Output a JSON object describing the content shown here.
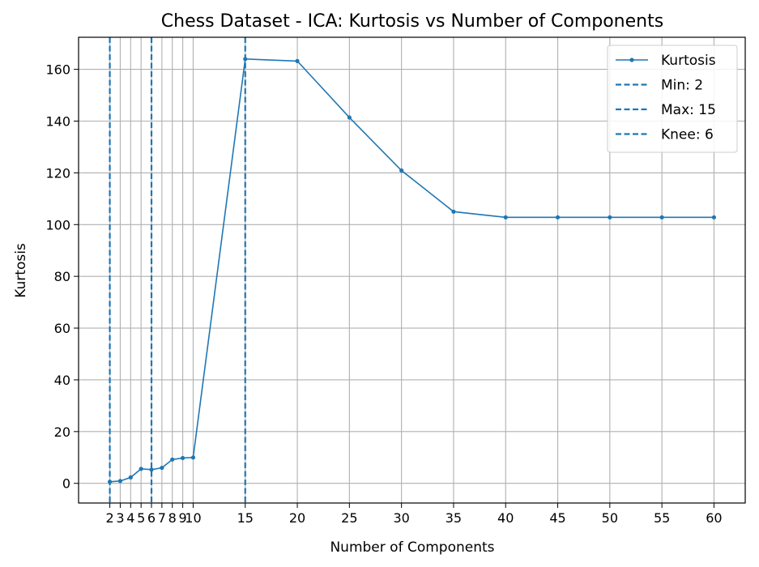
{
  "chart_data": {
    "type": "line",
    "title": "Chess Dataset - ICA: Kurtosis vs Number of Components",
    "xlabel": "Number of Components",
    "ylabel": "Kurtosis",
    "xlim": [
      -1,
      63
    ],
    "ylim": [
      -7.6,
      172.4
    ],
    "xticks": [
      2,
      3,
      4,
      5,
      6,
      7,
      8,
      9,
      10,
      15,
      20,
      25,
      30,
      35,
      40,
      45,
      50,
      55,
      60
    ],
    "yticks": [
      0,
      20,
      40,
      60,
      80,
      100,
      120,
      140,
      160
    ],
    "grid": true,
    "series": [
      {
        "name": "Kurtosis",
        "color": "#1f77b4",
        "x": [
          2,
          3,
          4,
          5,
          6,
          7,
          8,
          9,
          10,
          15,
          20,
          25,
          30,
          35,
          40,
          45,
          50,
          55,
          60
        ],
        "y": [
          0.6,
          0.9,
          2.3,
          5.6,
          5.3,
          6.0,
          9.2,
          9.8,
          10.0,
          164.0,
          163.2,
          141.4,
          120.9,
          105.0,
          102.8,
          102.8,
          102.8,
          102.8,
          102.8
        ]
      }
    ],
    "vlines": [
      {
        "label": "Min: 2",
        "x": 2,
        "color": "#1f77b4"
      },
      {
        "label": "Max: 15",
        "x": 15,
        "color": "#1f77b4"
      },
      {
        "label": "Knee: 6",
        "x": 6,
        "color": "#1f77b4"
      }
    ],
    "legend_position": "top-right"
  }
}
